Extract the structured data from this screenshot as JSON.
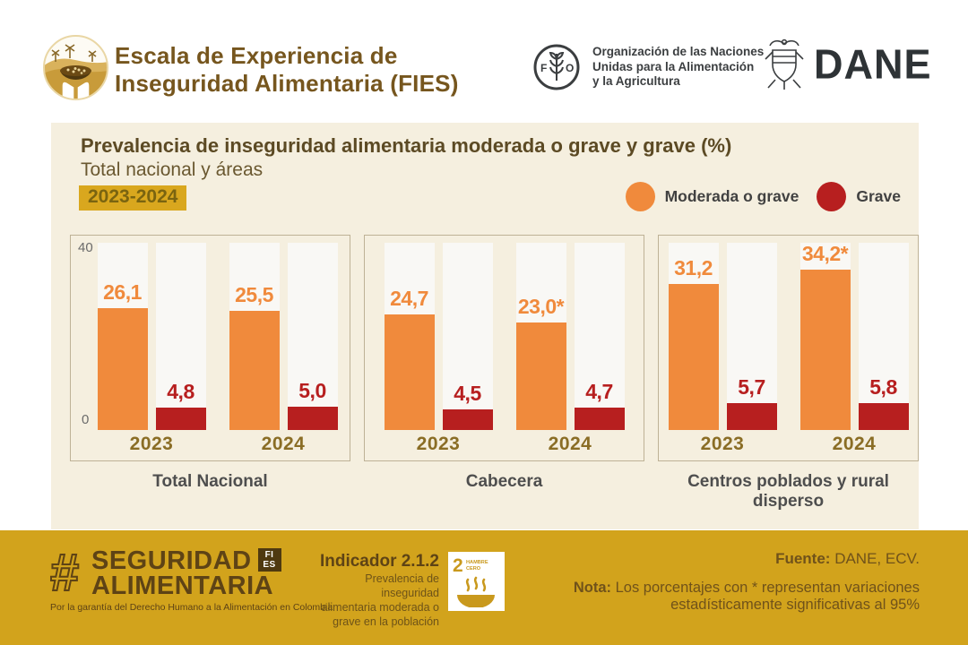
{
  "header": {
    "title_line1": "Escala de Experiencia de",
    "title_line2": "Inseguridad Alimentaria (FIES)",
    "fao_line1": "Organización de las Naciones",
    "fao_line2": "Unidas para la Alimentación",
    "fao_line3": "y la Agricultura",
    "dane_label": "DANE"
  },
  "main": {
    "title": "Prevalencia de inseguridad alimentaria moderada o grave y grave (%)",
    "subtitle": "Total nacional y áreas",
    "period_badge": "2023-2024",
    "legend": [
      {
        "label": "Moderada o grave",
        "color": "#F08A3C"
      },
      {
        "label": "Grave",
        "color": "#B71F1F"
      }
    ],
    "y_axis": {
      "max_label": "40",
      "min_label": "0"
    }
  },
  "chart_data": {
    "type": "bar",
    "title": "Prevalencia de inseguridad alimentaria moderada o grave y grave (%)",
    "subtitle": "Total nacional y áreas 2023-2024",
    "ylim": [
      0,
      40
    ],
    "grid": false,
    "legend_position": "top-right",
    "series_names": [
      "Moderada o grave",
      "Grave"
    ],
    "colors": {
      "moderada": "#F08A3C",
      "grave": "#B71F1F"
    },
    "track_color": "#F9F8F5",
    "panels": [
      {
        "label": "Total Nacional",
        "groups": [
          {
            "year": "2023",
            "moderada": {
              "value": 26.1,
              "label": "26,1"
            },
            "grave": {
              "value": 4.8,
              "label": "4,8"
            }
          },
          {
            "year": "2024",
            "moderada": {
              "value": 25.5,
              "label": "25,5"
            },
            "grave": {
              "value": 5.0,
              "label": "5,0"
            }
          }
        ]
      },
      {
        "label": "Cabecera",
        "groups": [
          {
            "year": "2023",
            "moderada": {
              "value": 24.7,
              "label": "24,7"
            },
            "grave": {
              "value": 4.5,
              "label": "4,5"
            }
          },
          {
            "year": "2024",
            "moderada": {
              "value": 23.0,
              "label": "23,0*"
            },
            "grave": {
              "value": 4.7,
              "label": "4,7"
            }
          }
        ]
      },
      {
        "label": "Centros poblados y rural disperso",
        "groups": [
          {
            "year": "2023",
            "moderada": {
              "value": 31.2,
              "label": "31,2"
            },
            "grave": {
              "value": 5.7,
              "label": "5,7"
            }
          },
          {
            "year": "2024",
            "moderada": {
              "value": 34.2,
              "label": "34,2*"
            },
            "grave": {
              "value": 5.8,
              "label": "5,8"
            }
          }
        ]
      }
    ]
  },
  "footer": {
    "hashtag_symbol": "#",
    "hashtag_line1": "SEGURIDAD",
    "hashtag_line2": "ALIMENTARIA",
    "fies_badge_line1": "FI",
    "fies_badge_line2": "ES",
    "tagline": "Por la garantía del Derecho Humano a la Alimentación en Colombia",
    "indicator_title": "Indicador 2.1.2",
    "indicator_desc_lines": [
      "Prevalencia de inseguridad",
      "alimentaria moderada o",
      "grave en la población"
    ],
    "sdg": {
      "number": "2",
      "name_line1": "HAMBRE",
      "name_line2": "CERO"
    },
    "fuente_label": "Fuente:",
    "fuente_value": " DANE, ECV.",
    "nota_label": "Nota:",
    "nota_text": " Los porcentajes con * representan variaciones estadísticamente significativas al 95%"
  }
}
